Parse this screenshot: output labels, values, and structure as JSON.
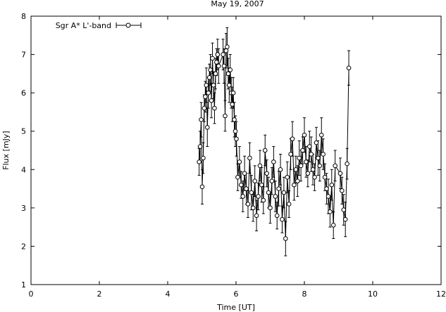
{
  "chart_data": {
    "type": "scatter",
    "title": "May 19, 2007",
    "xlabel": "Time [UT]",
    "ylabel": "Flux [mJy]",
    "xlim": [
      0,
      12
    ],
    "ylim": [
      1,
      8
    ],
    "xticks": [
      "0",
      "2",
      "4",
      "6",
      "8",
      "10",
      "12"
    ],
    "yticks": [
      "1",
      "2",
      "3",
      "4",
      "5",
      "6",
      "7",
      "8"
    ],
    "grid": false,
    "legend_position": "top-left",
    "colors": {
      "series": "#000000",
      "background": "#ffffff"
    },
    "series": [
      {
        "name": "Sgr A* L'-band",
        "marker": "open-circle",
        "connected": true,
        "error_bars": true,
        "x": [
          4.92,
          4.95,
          4.98,
          5.01,
          5.04,
          5.07,
          5.1,
          5.13,
          5.16,
          5.19,
          5.22,
          5.25,
          5.28,
          5.31,
          5.34,
          5.37,
          5.4,
          5.43,
          5.46,
          5.49,
          5.62,
          5.65,
          5.68,
          5.71,
          5.74,
          5.77,
          5.8,
          5.83,
          5.86,
          5.89,
          5.92,
          5.95,
          5.98,
          6.01,
          6.05,
          6.1,
          6.15,
          6.2,
          6.25,
          6.3,
          6.35,
          6.4,
          6.45,
          6.5,
          6.55,
          6.6,
          6.65,
          6.7,
          6.75,
          6.8,
          6.85,
          6.9,
          6.95,
          7.0,
          7.05,
          7.1,
          7.15,
          7.2,
          7.25,
          7.3,
          7.35,
          7.4,
          7.45,
          7.5,
          7.55,
          7.6,
          7.65,
          7.7,
          7.75,
          7.8,
          7.85,
          7.9,
          7.95,
          8.0,
          8.05,
          8.1,
          8.15,
          8.2,
          8.25,
          8.3,
          8.35,
          8.4,
          8.45,
          8.5,
          8.55,
          8.6,
          8.65,
          8.7,
          8.75,
          8.8,
          8.85,
          8.9,
          9.05,
          9.1,
          9.15,
          9.2,
          9.25,
          9.3
        ],
        "y": [
          4.2,
          4.6,
          5.3,
          3.55,
          4.3,
          5.6,
          5.9,
          6.2,
          5.1,
          6.0,
          6.4,
          6.6,
          5.8,
          6.9,
          6.2,
          5.6,
          6.5,
          6.8,
          7.0,
          6.7,
          7.0,
          6.7,
          5.4,
          7.1,
          7.2,
          6.5,
          6.2,
          6.6,
          6.0,
          5.7,
          6.0,
          5.3,
          5.0,
          4.8,
          3.8,
          4.2,
          3.6,
          3.3,
          3.9,
          3.5,
          3.1,
          4.3,
          3.4,
          3.0,
          3.7,
          2.8,
          3.3,
          4.1,
          3.6,
          3.2,
          4.5,
          3.9,
          3.4,
          3.0,
          3.7,
          4.2,
          3.3,
          2.8,
          3.5,
          4.0,
          2.7,
          3.4,
          2.2,
          3.8,
          3.1,
          4.4,
          4.8,
          3.6,
          4.0,
          3.7,
          4.3,
          4.1,
          4.5,
          4.9,
          4.2,
          3.9,
          4.6,
          4.4,
          4.0,
          3.8,
          4.7,
          4.3,
          4.1,
          4.9,
          4.4,
          3.8,
          3.5,
          3.3,
          2.9,
          3.6,
          2.55,
          4.1,
          3.9,
          3.45,
          2.95,
          2.7,
          4.15,
          6.65
        ],
        "err": [
          0.35,
          0.4,
          0.45,
          0.45,
          0.4,
          0.35,
          0.4,
          0.45,
          0.5,
          0.4,
          0.35,
          0.4,
          0.45,
          0.4,
          0.35,
          0.4,
          0.4,
          0.35,
          0.4,
          0.45,
          0.4,
          0.45,
          0.4,
          0.45,
          0.5,
          0.4,
          0.45,
          0.4,
          0.4,
          0.45,
          0.4,
          0.45,
          0.4,
          0.45,
          0.35,
          0.4,
          0.35,
          0.4,
          0.45,
          0.4,
          0.35,
          0.4,
          0.45,
          0.35,
          0.4,
          0.4,
          0.35,
          0.4,
          0.45,
          0.35,
          0.4,
          0.35,
          0.4,
          0.4,
          0.35,
          0.4,
          0.4,
          0.35,
          0.45,
          0.4,
          0.35,
          0.4,
          0.45,
          0.4,
          0.35,
          0.4,
          0.45,
          0.4,
          0.35,
          0.4,
          0.45,
          0.4,
          0.35,
          0.45,
          0.4,
          0.35,
          0.4,
          0.45,
          0.4,
          0.35,
          0.4,
          0.45,
          0.4,
          0.45,
          0.4,
          0.35,
          0.4,
          0.45,
          0.4,
          0.4,
          0.35,
          0.4,
          0.4,
          0.35,
          0.4,
          0.45,
          0.4,
          0.45
        ]
      }
    ]
  }
}
